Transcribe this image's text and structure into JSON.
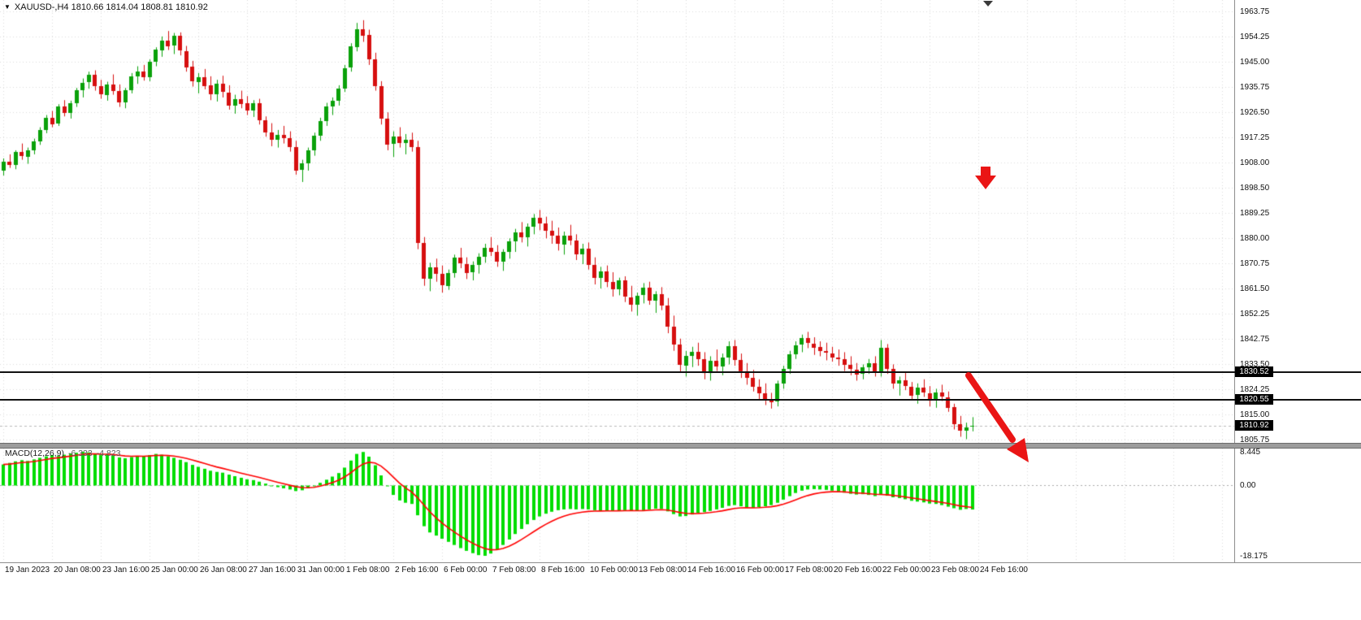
{
  "header": {
    "symbol_text": "XAUUSD-,H4 1810.66 1814.04 1808.81 1810.92",
    "dropdown_icon": "▼"
  },
  "macd_label": {
    "name": "MACD(12,26,9)",
    "main": "-6.333",
    "signal": "-4.823"
  },
  "colors": {
    "background": "#ffffff",
    "bull": "#0aa10a",
    "bear": "#d60f0f",
    "histogram": "#00dd00",
    "signal_line": "#ff0000",
    "grid": "#dcdcdc",
    "hline": "#111111",
    "tag_bg": "#000000",
    "tag_text": "#ffffff",
    "axis_text": "#111111",
    "arrow": "#ea1515",
    "separator": "#9c9c9c",
    "bid_line": "#b9b9b9"
  },
  "chart_data": {
    "type": "candlestick",
    "title": "XAUUSD-,H4",
    "symbol": "XAUUSD",
    "timeframe": "H4",
    "current_ohlc": {
      "open": 1810.66,
      "high": 1814.04,
      "low": 1808.81,
      "close": 1810.92
    },
    "y_axis": {
      "max": 1963.75,
      "min": 1805.75,
      "tick_labels": [
        "1963.75",
        "1954.25",
        "1945.00",
        "1935.75",
        "1926.50",
        "1917.25",
        "1908.00",
        "1898.50",
        "1889.25",
        "1880.00",
        "1870.75",
        "1861.50",
        "1852.25",
        "1842.75",
        "1833.50",
        "1824.25",
        "1815.00",
        "1805.75"
      ]
    },
    "x_axis": {
      "bars_per_tick": 8,
      "tick_labels": [
        "19 Jan 2023",
        "20 Jan 08:00",
        "23 Jan 16:00",
        "25 Jan 00:00",
        "26 Jan 08:00",
        "27 Jan 16:00",
        "31 Jan 00:00",
        "1 Feb 08:00",
        "2 Feb 16:00",
        "6 Feb 00:00",
        "7 Feb 08:00",
        "8 Feb 16:00",
        "10 Feb 00:00",
        "13 Feb 08:00",
        "14 Feb 16:00",
        "16 Feb 00:00",
        "17 Feb 08:00",
        "20 Feb 16:00",
        "22 Feb 00:00",
        "23 Feb 08:00",
        "24 Feb 16:00"
      ]
    },
    "hlines": [
      {
        "label": "1830.52",
        "price": 1830.52
      },
      {
        "label": "1820.55",
        "price": 1820.55
      }
    ],
    "bid": {
      "label": "1810.92",
      "price": 1810.92
    },
    "annotations": [
      {
        "name": "red-down-arrow",
        "meaning": "sell signal arrow"
      },
      {
        "name": "red-diagonal-trend-arrow",
        "meaning": "downtrend projection arrow"
      }
    ],
    "candles": [
      [
        1905.0,
        1909.5,
        1903.2,
        1908.3
      ],
      [
        1908.3,
        1911.0,
        1906.0,
        1907.0
      ],
      [
        1907.0,
        1912.5,
        1905.5,
        1911.8
      ],
      [
        1911.8,
        1915.0,
        1909.0,
        1910.2
      ],
      [
        1910.2,
        1913.5,
        1907.5,
        1912.6
      ],
      [
        1912.6,
        1916.8,
        1911.0,
        1915.9
      ],
      [
        1915.9,
        1921.0,
        1914.5,
        1920.1
      ],
      [
        1920.1,
        1925.5,
        1918.8,
        1924.6
      ],
      [
        1924.6,
        1927.0,
        1921.0,
        1922.3
      ],
      [
        1922.3,
        1929.5,
        1921.5,
        1928.7
      ],
      [
        1928.7,
        1931.0,
        1925.0,
        1926.4
      ],
      [
        1926.4,
        1930.8,
        1924.2,
        1929.9
      ],
      [
        1929.9,
        1935.5,
        1928.5,
        1934.8
      ],
      [
        1934.8,
        1939.0,
        1932.0,
        1937.5
      ],
      [
        1937.5,
        1941.5,
        1935.2,
        1940.3
      ],
      [
        1940.3,
        1942.0,
        1934.5,
        1936.1
      ],
      [
        1936.1,
        1938.5,
        1931.5,
        1933.0
      ],
      [
        1933.0,
        1937.8,
        1930.8,
        1936.9
      ],
      [
        1936.9,
        1940.5,
        1933.0,
        1934.5
      ],
      [
        1934.5,
        1936.8,
        1928.5,
        1930.2
      ],
      [
        1930.2,
        1935.5,
        1928.0,
        1934.6
      ],
      [
        1934.6,
        1941.0,
        1933.5,
        1939.8
      ],
      [
        1939.8,
        1943.5,
        1937.0,
        1941.7
      ],
      [
        1941.7,
        1944.0,
        1938.2,
        1939.5
      ],
      [
        1939.5,
        1946.0,
        1938.0,
        1945.2
      ],
      [
        1945.2,
        1950.5,
        1943.5,
        1949.6
      ],
      [
        1949.6,
        1954.5,
        1947.0,
        1953.1
      ],
      [
        1953.1,
        1956.5,
        1949.5,
        1951.0
      ],
      [
        1951.0,
        1955.8,
        1948.0,
        1954.7
      ],
      [
        1954.7,
        1956.0,
        1947.5,
        1949.2
      ],
      [
        1949.2,
        1951.0,
        1941.5,
        1943.3
      ],
      [
        1943.3,
        1945.5,
        1936.0,
        1937.8
      ],
      [
        1937.8,
        1941.0,
        1933.5,
        1939.6
      ],
      [
        1939.6,
        1942.5,
        1935.0,
        1936.4
      ],
      [
        1936.4,
        1939.8,
        1931.0,
        1933.2
      ],
      [
        1933.2,
        1938.5,
        1930.5,
        1937.0
      ],
      [
        1937.0,
        1940.0,
        1932.0,
        1933.9
      ],
      [
        1933.9,
        1936.5,
        1927.5,
        1929.1
      ],
      [
        1929.1,
        1933.0,
        1926.0,
        1931.5
      ],
      [
        1931.5,
        1934.5,
        1928.0,
        1929.8
      ],
      [
        1929.8,
        1932.5,
        1925.5,
        1927.2
      ],
      [
        1927.2,
        1931.0,
        1924.8,
        1930.0
      ],
      [
        1930.0,
        1931.5,
        1922.0,
        1923.6
      ],
      [
        1923.6,
        1925.0,
        1917.5,
        1919.1
      ],
      [
        1919.1,
        1922.5,
        1914.0,
        1916.4
      ],
      [
        1916.4,
        1920.0,
        1913.5,
        1918.2
      ],
      [
        1918.2,
        1921.5,
        1915.0,
        1917.0
      ],
      [
        1917.0,
        1919.5,
        1912.0,
        1913.8
      ],
      [
        1913.8,
        1916.0,
        1903.5,
        1905.2
      ],
      [
        1905.2,
        1909.0,
        1900.8,
        1907.6
      ],
      [
        1907.6,
        1913.5,
        1905.0,
        1912.4
      ],
      [
        1912.4,
        1919.0,
        1910.5,
        1917.8
      ],
      [
        1917.8,
        1924.5,
        1916.0,
        1923.2
      ],
      [
        1923.2,
        1930.0,
        1921.5,
        1928.6
      ],
      [
        1928.6,
        1932.0,
        1925.5,
        1930.8
      ],
      [
        1930.8,
        1936.5,
        1929.0,
        1935.4
      ],
      [
        1935.4,
        1944.0,
        1934.0,
        1942.9
      ],
      [
        1942.9,
        1952.0,
        1941.5,
        1950.8
      ],
      [
        1950.8,
        1959.5,
        1949.0,
        1957.3
      ],
      [
        1957.3,
        1960.5,
        1952.5,
        1955.0
      ],
      [
        1955.0,
        1957.0,
        1944.0,
        1946.1
      ],
      [
        1946.1,
        1948.5,
        1934.5,
        1936.2
      ],
      [
        1936.2,
        1938.0,
        1922.0,
        1924.3
      ],
      [
        1924.3,
        1926.5,
        1912.5,
        1914.8
      ],
      [
        1914.8,
        1919.5,
        1910.0,
        1917.6
      ],
      [
        1917.6,
        1921.0,
        1913.5,
        1915.2
      ],
      [
        1915.2,
        1918.5,
        1911.0,
        1916.4
      ],
      [
        1916.4,
        1919.0,
        1912.0,
        1913.7
      ],
      [
        1913.7,
        1916.0,
        1876.0,
        1878.4
      ],
      [
        1878.4,
        1880.5,
        1862.5,
        1865.1
      ],
      [
        1865.1,
        1871.0,
        1860.5,
        1869.3
      ],
      [
        1869.3,
        1872.5,
        1864.0,
        1866.8
      ],
      [
        1866.8,
        1870.0,
        1860.0,
        1862.5
      ],
      [
        1862.5,
        1868.5,
        1861.0,
        1867.2
      ],
      [
        1867.2,
        1874.0,
        1865.5,
        1872.8
      ],
      [
        1872.8,
        1876.5,
        1869.0,
        1870.6
      ],
      [
        1870.6,
        1873.0,
        1865.0,
        1867.4
      ],
      [
        1867.4,
        1871.5,
        1864.5,
        1870.1
      ],
      [
        1870.1,
        1874.5,
        1867.0,
        1873.2
      ],
      [
        1873.2,
        1878.0,
        1871.0,
        1876.5
      ],
      [
        1876.5,
        1880.5,
        1873.5,
        1875.0
      ],
      [
        1875.0,
        1877.5,
        1869.5,
        1871.3
      ],
      [
        1871.3,
        1876.0,
        1868.0,
        1874.9
      ],
      [
        1874.9,
        1880.0,
        1872.5,
        1878.8
      ],
      [
        1878.8,
        1883.5,
        1875.0,
        1882.1
      ],
      [
        1882.1,
        1886.0,
        1878.5,
        1880.3
      ],
      [
        1880.3,
        1885.5,
        1877.0,
        1884.2
      ],
      [
        1884.2,
        1889.0,
        1881.5,
        1887.6
      ],
      [
        1887.6,
        1890.5,
        1883.0,
        1885.4
      ],
      [
        1885.4,
        1888.0,
        1880.0,
        1882.7
      ],
      [
        1882.7,
        1886.5,
        1878.0,
        1880.9
      ],
      [
        1880.9,
        1884.0,
        1875.5,
        1877.8
      ],
      [
        1877.8,
        1882.5,
        1874.0,
        1881.0
      ],
      [
        1881.0,
        1885.0,
        1877.5,
        1879.2
      ],
      [
        1879.2,
        1881.5,
        1872.0,
        1874.1
      ],
      [
        1874.1,
        1878.0,
        1870.5,
        1876.3
      ],
      [
        1876.3,
        1878.5,
        1868.5,
        1870.2
      ],
      [
        1870.2,
        1873.0,
        1863.0,
        1865.4
      ],
      [
        1865.4,
        1869.5,
        1861.5,
        1867.8
      ],
      [
        1867.8,
        1870.0,
        1862.0,
        1863.9
      ],
      [
        1863.9,
        1867.5,
        1858.5,
        1861.1
      ],
      [
        1861.1,
        1865.5,
        1859.0,
        1864.4
      ],
      [
        1864.4,
        1866.0,
        1856.5,
        1858.3
      ],
      [
        1858.3,
        1862.5,
        1853.0,
        1855.6
      ],
      [
        1855.6,
        1860.0,
        1851.5,
        1858.9
      ],
      [
        1858.9,
        1863.5,
        1856.0,
        1861.7
      ],
      [
        1861.7,
        1864.0,
        1855.5,
        1857.0
      ],
      [
        1857.0,
        1860.5,
        1852.5,
        1859.4
      ],
      [
        1859.4,
        1862.0,
        1853.5,
        1855.2
      ],
      [
        1855.2,
        1858.0,
        1845.0,
        1847.3
      ],
      [
        1847.3,
        1851.5,
        1838.5,
        1840.8
      ],
      [
        1840.8,
        1843.0,
        1830.5,
        1833.2
      ],
      [
        1833.2,
        1838.5,
        1829.0,
        1836.7
      ],
      [
        1836.7,
        1840.0,
        1832.5,
        1838.1
      ],
      [
        1838.1,
        1841.5,
        1833.0,
        1835.4
      ],
      [
        1835.4,
        1838.0,
        1828.0,
        1830.2
      ],
      [
        1830.2,
        1836.5,
        1827.5,
        1834.8
      ],
      [
        1834.8,
        1839.0,
        1831.0,
        1832.6
      ],
      [
        1832.6,
        1837.5,
        1829.5,
        1836.0
      ],
      [
        1836.0,
        1842.0,
        1833.5,
        1840.3
      ],
      [
        1840.3,
        1842.5,
        1833.0,
        1835.1
      ],
      [
        1835.1,
        1837.5,
        1828.5,
        1830.8
      ],
      [
        1830.8,
        1834.0,
        1826.0,
        1828.4
      ],
      [
        1828.4,
        1831.5,
        1823.5,
        1825.2
      ],
      [
        1825.2,
        1828.0,
        1820.5,
        1822.9
      ],
      [
        1822.9,
        1826.5,
        1818.5,
        1820.4
      ],
      [
        1820.4,
        1823.0,
        1817.2,
        1819.6
      ],
      [
        1819.6,
        1827.5,
        1818.0,
        1826.3
      ],
      [
        1826.3,
        1833.0,
        1824.5,
        1831.8
      ],
      [
        1831.8,
        1838.5,
        1830.0,
        1837.2
      ],
      [
        1837.2,
        1842.0,
        1835.5,
        1840.6
      ],
      [
        1840.6,
        1844.5,
        1838.0,
        1843.1
      ],
      [
        1843.1,
        1845.5,
        1839.5,
        1841.2
      ],
      [
        1841.2,
        1843.5,
        1837.0,
        1839.8
      ],
      [
        1839.8,
        1842.0,
        1836.5,
        1838.3
      ],
      [
        1838.3,
        1841.5,
        1835.0,
        1837.6
      ],
      [
        1837.6,
        1840.0,
        1834.5,
        1836.1
      ],
      [
        1836.1,
        1839.0,
        1833.0,
        1835.4
      ],
      [
        1835.4,
        1838.0,
        1831.0,
        1833.2
      ],
      [
        1833.2,
        1836.5,
        1829.5,
        1831.6
      ],
      [
        1831.6,
        1834.0,
        1827.5,
        1829.9
      ],
      [
        1829.9,
        1833.5,
        1828.0,
        1832.4
      ],
      [
        1832.4,
        1835.5,
        1830.0,
        1834.0
      ],
      [
        1834.0,
        1836.5,
        1829.0,
        1830.6
      ],
      [
        1830.6,
        1842.5,
        1829.0,
        1839.6
      ],
      [
        1839.6,
        1841.0,
        1830.0,
        1831.7
      ],
      [
        1831.7,
        1833.5,
        1824.5,
        1826.2
      ],
      [
        1826.2,
        1829.0,
        1822.0,
        1827.5
      ],
      [
        1827.5,
        1830.5,
        1824.0,
        1825.3
      ],
      [
        1825.3,
        1827.0,
        1820.5,
        1822.1
      ],
      [
        1822.1,
        1826.5,
        1819.0,
        1824.8
      ],
      [
        1824.8,
        1828.0,
        1821.5,
        1822.9
      ],
      [
        1822.9,
        1825.5,
        1818.0,
        1820.3
      ],
      [
        1820.3,
        1824.5,
        1817.5,
        1823.0
      ],
      [
        1823.0,
        1826.0,
        1820.0,
        1821.4
      ],
      [
        1821.4,
        1823.5,
        1816.0,
        1817.6
      ],
      [
        1817.6,
        1819.0,
        1809.5,
        1811.4
      ],
      [
        1811.4,
        1814.5,
        1806.8,
        1808.9
      ],
      [
        1808.9,
        1812.0,
        1805.9,
        1810.1
      ],
      [
        1810.66,
        1814.04,
        1808.81,
        1810.92
      ]
    ],
    "macd": {
      "params": "12,26,9",
      "main_value": -6.333,
      "signal_value": -4.823,
      "max": 8.445,
      "min": -18.175,
      "axis_labels": [
        {
          "text": "8.445",
          "value": 8.445
        },
        {
          "text": "0.00",
          "value": 0
        },
        {
          "text": "-18.175",
          "value": -18.175
        }
      ],
      "histogram": [
        5.2,
        5.6,
        6.0,
        6.3,
        6.1,
        6.5,
        6.9,
        7.3,
        7.6,
        7.4,
        7.7,
        8.0,
        8.2,
        8.445,
        8.3,
        8.0,
        7.6,
        7.8,
        7.5,
        7.0,
        6.8,
        7.1,
        7.4,
        7.2,
        7.6,
        7.9,
        7.7,
        7.3,
        6.9,
        6.4,
        5.8,
        5.1,
        4.6,
        4.1,
        3.6,
        3.3,
        3.1,
        2.6,
        2.2,
        1.8,
        1.4,
        1.2,
        0.8,
        0.3,
        -0.2,
        -0.6,
        -0.9,
        -1.2,
        -1.6,
        -1.4,
        -0.9,
        -0.3,
        0.5,
        1.3,
        2.1,
        3.0,
        4.4,
        6.2,
        7.9,
        8.4,
        7.2,
        5.0,
        2.4,
        -0.4,
        -2.6,
        -4.0,
        -4.6,
        -4.9,
        -7.8,
        -10.6,
        -12.2,
        -13.0,
        -13.8,
        -14.6,
        -15.4,
        -16.2,
        -16.9,
        -17.5,
        -18.0,
        -18.175,
        -17.6,
        -16.6,
        -15.4,
        -14.0,
        -12.6,
        -11.3,
        -10.1,
        -9.0,
        -8.1,
        -7.4,
        -6.9,
        -6.5,
        -6.3,
        -6.2,
        -6.3,
        -6.2,
        -6.3,
        -6.5,
        -6.6,
        -6.6,
        -6.7,
        -6.6,
        -6.5,
        -6.6,
        -6.7,
        -6.5,
        -6.3,
        -6.1,
        -6.2,
        -6.8,
        -7.5,
        -8.1,
        -8.0,
        -7.6,
        -7.2,
        -7.0,
        -6.7,
        -6.3,
        -5.9,
        -5.4,
        -5.2,
        -5.5,
        -5.8,
        -5.9,
        -5.7,
        -5.5,
        -5.2,
        -4.6,
        -3.8,
        -2.9,
        -2.1,
        -1.5,
        -1.2,
        -1.1,
        -1.2,
        -1.3,
        -1.5,
        -1.7,
        -2.0,
        -2.3,
        -2.5,
        -2.4,
        -2.6,
        -2.9,
        -2.6,
        -2.8,
        -3.2,
        -3.4,
        -3.7,
        -4.1,
        -4.3,
        -4.5,
        -4.8,
        -4.9,
        -5.2,
        -5.6,
        -6.0,
        -6.4,
        -6.2,
        -6.333
      ]
    }
  }
}
